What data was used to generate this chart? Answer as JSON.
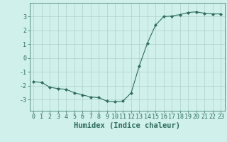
{
  "x": [
    0,
    1,
    2,
    3,
    4,
    5,
    6,
    7,
    8,
    9,
    10,
    11,
    12,
    13,
    14,
    15,
    16,
    17,
    18,
    19,
    20,
    21,
    22,
    23
  ],
  "y": [
    -1.7,
    -1.75,
    -2.1,
    -2.2,
    -2.25,
    -2.5,
    -2.65,
    -2.8,
    -2.85,
    -3.1,
    -3.15,
    -3.1,
    -2.5,
    -0.55,
    1.1,
    2.4,
    3.0,
    3.05,
    3.15,
    3.3,
    3.35,
    3.25,
    3.2,
    3.2
  ],
  "xlabel": "Humidex (Indice chaleur)",
  "xlim": [
    -0.5,
    23.5
  ],
  "ylim": [
    -3.8,
    4.0
  ],
  "yticks": [
    -3,
    -2,
    -1,
    0,
    1,
    2,
    3
  ],
  "xtick_labels": [
    "0",
    "1",
    "2",
    "3",
    "4",
    "5",
    "6",
    "7",
    "8",
    "9",
    "10",
    "11",
    "12",
    "13",
    "14",
    "15",
    "16",
    "17",
    "18",
    "19",
    "20",
    "21",
    "22",
    "23"
  ],
  "line_color": "#2e6b5e",
  "marker": "D",
  "marker_size": 2.0,
  "bg_color": "#cff0eb",
  "grid_color": "#b0cfc9",
  "tick_color": "#2e6b5e",
  "label_color": "#2e6b5e",
  "xlabel_fontsize": 7.5,
  "tick_fontsize": 6.0
}
